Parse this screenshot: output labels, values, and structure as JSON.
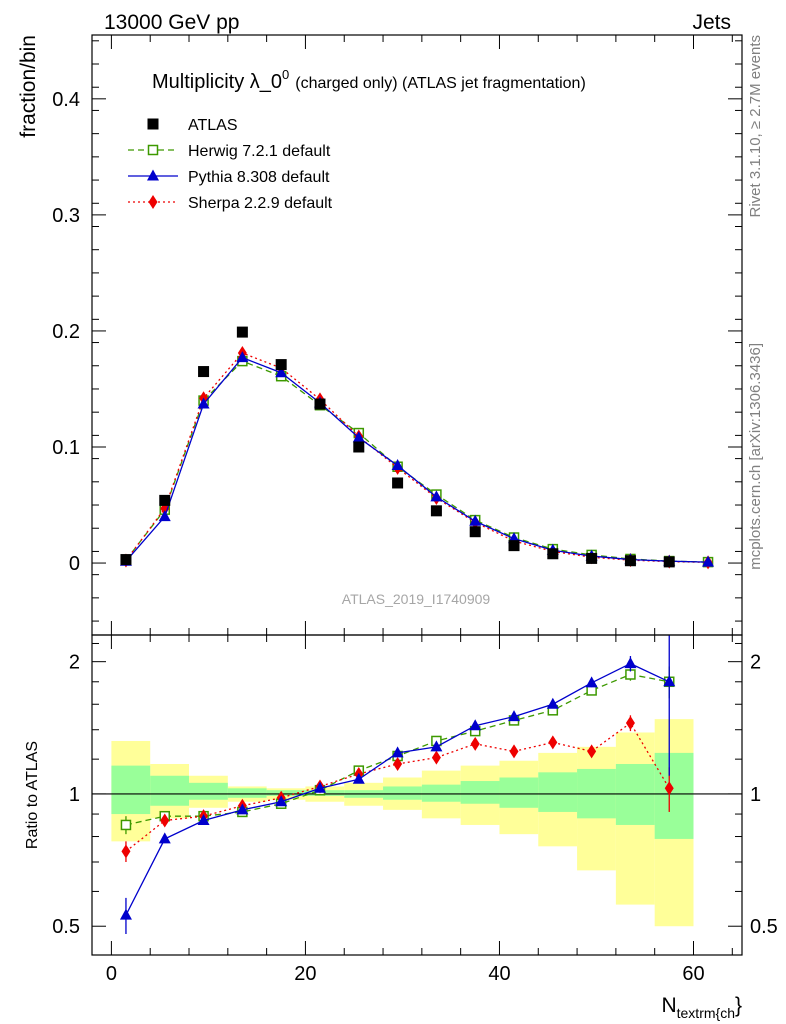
{
  "header": {
    "left": "13000 GeV pp",
    "right": "Jets"
  },
  "side_labels": {
    "rivet": "Rivet 3.1.10, ≥ 2.7M events",
    "mcplots": "mcplots.cern.ch [arXiv:1306.3436]"
  },
  "watermark": "ATLAS_2019_I1740909",
  "chart_data": [
    {
      "type": "scatter",
      "title": "Multiplicity λ_0",
      "title_sup": "0",
      "title_note": "(charged only) (ATLAS jet fragmentation)",
      "ylabel": "fraction/bin",
      "xlim": [
        -2,
        65
      ],
      "ylim": [
        -0.062,
        0.455
      ],
      "yticks": [
        0,
        0.1,
        0.2,
        0.3,
        0.4
      ],
      "ytick_labels": [
        "0",
        "0.1",
        "0.2",
        "0.3",
        "0.4"
      ],
      "legend_position": "top-left",
      "x": [
        1.5,
        5.5,
        9.5,
        13.5,
        17.5,
        21.5,
        25.5,
        29.5,
        33.5,
        37.5,
        41.5,
        45.5,
        49.5,
        53.5,
        57.5,
        61.5
      ],
      "series": [
        {
          "name": "ATLAS",
          "color": "#000000",
          "marker": "square",
          "values": [
            0.003,
            0.054,
            0.165,
            0.199,
            0.171,
            0.137,
            0.1,
            0.069,
            0.045,
            0.027,
            0.015,
            0.008,
            0.004,
            0.002,
            0.001,
            null
          ]
        },
        {
          "name": "Herwig 7.2.1 default",
          "color": "#3d9900",
          "marker": "open-square",
          "line": "dashed",
          "values": [
            0.0025,
            0.046,
            0.14,
            0.174,
            0.161,
            0.136,
            0.112,
            0.083,
            0.059,
            0.037,
            0.022,
            0.012,
            0.007,
            0.0035,
            0.0017,
            0.0008
          ]
        },
        {
          "name": "Pythia 8.308 default",
          "color": "#0000cc",
          "marker": "triangle",
          "line": "solid",
          "values": [
            0.0016,
            0.04,
            0.137,
            0.177,
            0.164,
            0.138,
            0.108,
            0.084,
            0.057,
            0.036,
            0.021,
            0.011,
            0.006,
            0.003,
            0.0016,
            0.0008
          ]
        },
        {
          "name": "Sherpa 2.2.9 default",
          "color": "#ee0000",
          "marker": "diamond",
          "line": "dotted",
          "values": [
            0.0022,
            0.047,
            0.142,
            0.181,
            0.168,
            0.141,
            0.109,
            0.082,
            0.056,
            0.035,
            0.019,
            0.01,
            0.005,
            0.0025,
            0.0012,
            0.0006
          ]
        }
      ]
    },
    {
      "type": "line",
      "xlabel": "N",
      "xlabel_sub": "textrm{ch",
      "xlabel_tail": "}",
      "ylabel": "Ratio to ATLAS",
      "xlim": [
        -2,
        65
      ],
      "ylim": [
        0.43,
        2.3
      ],
      "yscale": "log",
      "yticks": [
        0.5,
        1,
        2
      ],
      "ytick_labels": [
        "0.5",
        "1",
        "2"
      ],
      "xticks": [
        0,
        20,
        40,
        60
      ],
      "xtick_labels": [
        "0",
        "20",
        "40",
        "60"
      ],
      "x": [
        1.5,
        5.5,
        9.5,
        13.5,
        17.5,
        21.5,
        25.5,
        29.5,
        33.5,
        37.5,
        41.5,
        45.5,
        49.5,
        53.5,
        57.5
      ],
      "bin_edges": [
        0,
        4,
        8,
        12,
        16,
        20,
        24,
        28,
        32,
        36,
        40,
        44,
        48,
        52,
        56,
        60
      ],
      "band_stat_colour": "#99ff99",
      "band_total_colour": "#ffff99",
      "band_stat": [
        [
          0.9,
          1.16
        ],
        [
          0.94,
          1.1
        ],
        [
          0.97,
          1.06
        ],
        [
          0.98,
          1.03
        ],
        [
          0.99,
          1.02
        ],
        [
          0.99,
          1.02
        ],
        [
          0.98,
          1.02
        ],
        [
          0.97,
          1.04
        ],
        [
          0.96,
          1.05
        ],
        [
          0.95,
          1.07
        ],
        [
          0.93,
          1.09
        ],
        [
          0.91,
          1.12
        ],
        [
          0.88,
          1.14
        ],
        [
          0.85,
          1.17
        ],
        [
          0.79,
          1.24
        ]
      ],
      "band_total": [
        [
          0.78,
          1.32
        ],
        [
          0.88,
          1.17
        ],
        [
          0.93,
          1.1
        ],
        [
          0.96,
          1.04
        ],
        [
          0.97,
          1.03
        ],
        [
          0.96,
          1.04
        ],
        [
          0.94,
          1.06
        ],
        [
          0.92,
          1.09
        ],
        [
          0.88,
          1.13
        ],
        [
          0.85,
          1.16
        ],
        [
          0.81,
          1.19
        ],
        [
          0.76,
          1.24
        ],
        [
          0.67,
          1.28
        ],
        [
          0.56,
          1.38
        ],
        [
          0.5,
          1.48
        ]
      ],
      "series": [
        {
          "name": "Herwig 7.2.1 default",
          "color": "#3d9900",
          "marker": "open-square",
          "line": "dashed",
          "values": [
            0.85,
            0.89,
            0.89,
            0.91,
            0.95,
            1.02,
            1.13,
            1.22,
            1.32,
            1.39,
            1.47,
            1.55,
            1.72,
            1.87,
            1.8
          ],
          "err": [
            0.04,
            0.01,
            0.01,
            0.01,
            0.01,
            0.01,
            0.01,
            0.01,
            0.02,
            0.02,
            0.02,
            0.03,
            0.04,
            0.06,
            0.15
          ]
        },
        {
          "name": "Pythia 8.308 default",
          "color": "#0000cc",
          "marker": "triangle",
          "line": "solid",
          "values": [
            0.53,
            0.79,
            0.87,
            0.92,
            0.96,
            1.03,
            1.08,
            1.24,
            1.28,
            1.43,
            1.5,
            1.6,
            1.79,
            1.98,
            1.8
          ],
          "err": [
            0.05,
            0.01,
            0.01,
            0.01,
            0.01,
            0.01,
            0.01,
            0.01,
            0.02,
            0.02,
            0.02,
            0.03,
            0.04,
            0.08,
            0.7
          ]
        },
        {
          "name": "Sherpa 2.2.9 default",
          "color": "#ee0000",
          "marker": "diamond",
          "line": "dotted",
          "values": [
            0.74,
            0.87,
            0.89,
            0.94,
            0.98,
            1.04,
            1.11,
            1.17,
            1.21,
            1.3,
            1.25,
            1.31,
            1.25,
            1.45,
            1.03
          ],
          "err": [
            0.04,
            0.01,
            0.01,
            0.01,
            0.01,
            0.01,
            0.01,
            0.01,
            0.02,
            0.02,
            0.02,
            0.02,
            0.03,
            0.06,
            0.12
          ]
        }
      ]
    }
  ]
}
